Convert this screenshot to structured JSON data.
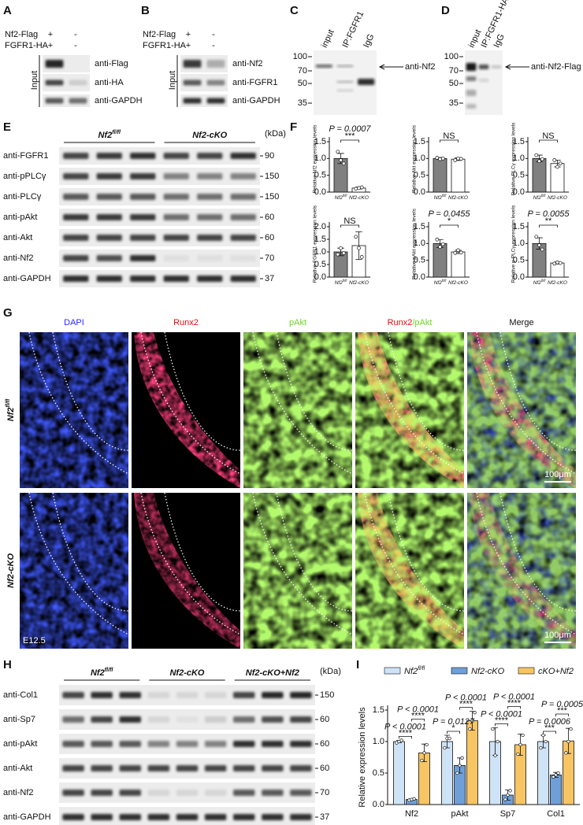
{
  "panel_labels": [
    "A",
    "B",
    "C",
    "D",
    "E",
    "F",
    "G",
    "H",
    "I"
  ],
  "panel_a": {
    "rows": [
      {
        "label": "Nf2-Flag",
        "lanes": [
          "+",
          "-"
        ]
      },
      {
        "label": "FGFR1-HA",
        "lanes": [
          "+",
          "-"
        ]
      }
    ],
    "group": "Input",
    "blots": [
      "anti-Flag",
      "anti-HA",
      "anti-GAPDH"
    ]
  },
  "panel_b": {
    "rows": [
      {
        "label": "Nf2-Flag",
        "lanes": [
          "+",
          "-"
        ]
      },
      {
        "label": "FGFR1-HA",
        "lanes": [
          "+",
          "-"
        ]
      }
    ],
    "group": "Input",
    "blots": [
      "anti-Nf2",
      "anti-FGFR1",
      "anti-GAPDH"
    ]
  },
  "panel_c": {
    "markers": [
      100,
      70,
      50,
      35
    ],
    "lanes": [
      "input",
      "IP:FGFR1",
      "IgG"
    ],
    "arrow_label": "anti-Nf2"
  },
  "panel_d": {
    "markers": [
      100,
      70,
      50,
      35
    ],
    "lanes": [
      "input",
      "IP:FGFR1-HA",
      "IgG"
    ],
    "arrow_label": "anti-Nf2-Flag"
  },
  "panel_e": {
    "groups": [
      {
        "base": "Nf2",
        "sup": "fl/fl"
      },
      {
        "base": "Nf2-cKO"
      }
    ],
    "unit": "(kDa)",
    "blots": [
      {
        "label": "anti-FGFR1",
        "kda": 90
      },
      {
        "label": "anti-pPLCγ",
        "kda": 150
      },
      {
        "label": "anti-PLCγ",
        "kda": 150
      },
      {
        "label": "anti-pAkt",
        "kda": 60
      },
      {
        "label": "anti-Akt",
        "kda": 60
      },
      {
        "label": "anti-Nf2",
        "kda": 70
      },
      {
        "label": "anti-GAPDH",
        "kda": 37
      }
    ]
  },
  "panel_g": {
    "columns": [
      [
        {
          "text": "DAPI",
          "color": "#2b2bff"
        }
      ],
      [
        {
          "text": "Runx2",
          "color": "#e01010"
        }
      ],
      [
        {
          "text": "pAkt",
          "color": "#6fd62a"
        }
      ],
      [
        {
          "text": "Runx2",
          "color": "#e01010"
        },
        {
          "text": "/pAkt",
          "color": "#6fd62a"
        }
      ],
      [
        {
          "text": "Merge",
          "color": "#111111"
        }
      ]
    ],
    "rows": [
      {
        "base": "Nf2",
        "sup": "fl/fl"
      },
      {
        "base": "Nf2-cKO"
      }
    ],
    "scale_bar": "100μm",
    "stage": "E12.5"
  },
  "panel_h": {
    "groups": [
      {
        "base": "Nf2",
        "sup": "fl/fl"
      },
      {
        "base": "Nf2-cKO"
      },
      {
        "base": "Nf2-cKO+Nf2"
      }
    ],
    "unit": "(kDa)",
    "blots": [
      {
        "label": "anti-Col1",
        "kda": 150
      },
      {
        "label": "anti-Sp7",
        "kda": 60
      },
      {
        "label": "anti-pAkt",
        "kda": 60
      },
      {
        "label": "anti-Akt",
        "kda": 60
      },
      {
        "label": "anti-Nf2",
        "kda": 70
      },
      {
        "label": "anti-GAPDH",
        "kda": 37
      }
    ]
  },
  "chart_data": [
    {
      "type": "bar",
      "ylabel": "Relative Nf2 expression levels",
      "categories": [
        {
          "base": "Nf2",
          "sup": "fl/fl"
        },
        {
          "base": "Nf2-cKO"
        }
      ],
      "colors": [
        "#808080",
        "#ffffff"
      ],
      "values": [
        1.0,
        0.12
      ],
      "errors": [
        0.15,
        0.03
      ],
      "points": [
        [
          1.2,
          0.95,
          0.85
        ],
        [
          0.1,
          0.12,
          0.14
        ]
      ],
      "ylim": [
        0,
        1.5
      ],
      "yticks": [
        {
          "value": 0,
          "label": "0.0"
        },
        {
          "value": 0.5,
          "label": "0.5"
        },
        {
          "value": 1,
          "label": "1.0"
        },
        {
          "value": 1.5,
          "label": "1.5"
        }
      ],
      "annotation": "P = 0.0007",
      "stars": "***"
    },
    {
      "type": "bar",
      "ylabel": "Relative Akt expression levels",
      "categories": [
        {
          "base": "Nf2",
          "sup": "fl/fl"
        },
        {
          "base": "Nf2-cKO"
        }
      ],
      "colors": [
        "#808080",
        "#ffffff"
      ],
      "values": [
        1.0,
        0.98
      ],
      "errors": [
        0.03,
        0.04
      ],
      "points": [
        [
          1.02,
          0.98,
          1.0
        ],
        [
          0.95,
          1.0,
          0.99
        ]
      ],
      "ylim": [
        0,
        1.5
      ],
      "yticks": [
        {
          "value": 0,
          "label": "0.0"
        },
        {
          "value": 0.5,
          "label": "0.5"
        },
        {
          "value": 1,
          "label": "1.0"
        },
        {
          "value": 1.5,
          "label": "1.5"
        }
      ],
      "stars": "NS"
    },
    {
      "type": "bar",
      "ylabel": "Relative PLCγ expression levels",
      "categories": [
        {
          "base": "Nf2",
          "sup": "fl/fl"
        },
        {
          "base": "Nf2-cKO"
        }
      ],
      "colors": [
        "#808080",
        "#ffffff"
      ],
      "values": [
        1.0,
        0.85
      ],
      "errors": [
        0.1,
        0.1
      ],
      "points": [
        [
          1.1,
          0.92,
          0.98
        ],
        [
          0.95,
          0.75,
          0.85
        ]
      ],
      "ylim": [
        0,
        1.5
      ],
      "yticks": [
        {
          "value": 0,
          "label": "0.0"
        },
        {
          "value": 0.5,
          "label": "0.5"
        },
        {
          "value": 1,
          "label": "1.0"
        },
        {
          "value": 1.5,
          "label": "1.5"
        }
      ],
      "stars": "NS"
    },
    {
      "type": "bar",
      "ylabel": "Relative FGFR1 expression levels",
      "categories": [
        {
          "base": "Nf2",
          "sup": "fl/fl"
        },
        {
          "base": "Nf2-cKO"
        }
      ],
      "colors": [
        "#808080",
        "#ffffff"
      ],
      "values": [
        1.0,
        1.25
      ],
      "errors": [
        0.15,
        0.55
      ],
      "points": [
        [
          0.9,
          1.15,
          0.95
        ],
        [
          1.6,
          1.15,
          0.8
        ]
      ],
      "ylim": [
        0,
        2
      ],
      "yticks": [
        {
          "value": 0,
          "label": "0.0"
        },
        {
          "value": 0.5,
          "label": "0.5"
        },
        {
          "value": 1,
          "label": "1.0"
        },
        {
          "value": 1.5,
          "label": "1.5"
        },
        {
          "value": 2,
          "label": "2.0"
        }
      ],
      "stars": "NS"
    },
    {
      "type": "bar",
      "ylabel": "Relative pAkt expression levels",
      "categories": [
        {
          "base": "Nf2",
          "sup": "fl/fl"
        },
        {
          "base": "Nf2-cKO"
        }
      ],
      "colors": [
        "#808080",
        "#ffffff"
      ],
      "values": [
        1.0,
        0.75
      ],
      "errors": [
        0.12,
        0.05
      ],
      "points": [
        [
          1.12,
          0.9,
          0.98
        ],
        [
          0.72,
          0.8,
          0.73
        ]
      ],
      "ylim": [
        0,
        1.5
      ],
      "yticks": [
        {
          "value": 0,
          "label": "0.0"
        },
        {
          "value": 0.5,
          "label": "0.5"
        },
        {
          "value": 1,
          "label": "1.0"
        },
        {
          "value": 1.5,
          "label": "1.5"
        }
      ],
      "annotation": "P = 0.0455",
      "stars": "*"
    },
    {
      "type": "bar",
      "ylabel": "Relative p-PLCγ expression levels",
      "categories": [
        {
          "base": "Nf2",
          "sup": "fl/fl"
        },
        {
          "base": "Nf2-cKO"
        }
      ],
      "colors": [
        "#808080",
        "#ffffff"
      ],
      "values": [
        1.0,
        0.42
      ],
      "errors": [
        0.17,
        0.03
      ],
      "points": [
        [
          1.2,
          0.95,
          0.82
        ],
        [
          0.4,
          0.44,
          0.42
        ]
      ],
      "ylim": [
        0,
        1.5
      ],
      "yticks": [
        {
          "value": 0,
          "label": "0.0"
        },
        {
          "value": 0.5,
          "label": "0.5"
        },
        {
          "value": 1,
          "label": "1.0"
        },
        {
          "value": 1.5,
          "label": "1.5"
        }
      ],
      "annotation": "P = 0.0055",
      "stars": "**"
    },
    {
      "type": "grouped_bar",
      "ylabel": "Relative expression levels",
      "categories": [
        "Nf2",
        "pAkt",
        "Sp7",
        "Col1"
      ],
      "series": [
        {
          "name": {
            "base": "Nf2",
            "sup": "fl/fl"
          },
          "color": "#cfe3f7",
          "values": [
            1.0,
            1.0,
            1.0,
            1.0
          ],
          "errors": [
            0.02,
            0.1,
            0.22,
            0.1
          ],
          "points": [
            [
              0.98,
              1.0,
              1.02
            ],
            [
              0.9,
              1.05,
              1.05
            ],
            [
              1.2,
              0.78,
              1.0
            ],
            [
              0.9,
              1.1,
              1.0
            ]
          ]
        },
        {
          "name": {
            "base": "Nf2-cKO"
          },
          "color": "#6f9fd8",
          "values": [
            0.08,
            0.62,
            0.15,
            0.47
          ],
          "errors": [
            0.01,
            0.12,
            0.08,
            0.04
          ],
          "points": [
            [
              0.07,
              0.08,
              0.09
            ],
            [
              0.5,
              0.62,
              0.74
            ],
            [
              0.08,
              0.15,
              0.22
            ],
            [
              0.44,
              0.47,
              0.5
            ]
          ]
        },
        {
          "name": {
            "base": "cKO+Nf2"
          },
          "color": "#f7c564",
          "values": [
            0.82,
            1.33,
            0.95,
            1.01
          ],
          "errors": [
            0.14,
            0.15,
            0.17,
            0.2
          ],
          "points": [
            [
              0.7,
              0.82,
              0.95
            ],
            [
              1.2,
              1.33,
              1.46
            ],
            [
              0.8,
              0.95,
              1.1
            ],
            [
              0.82,
              1.0,
              1.2
            ]
          ]
        }
      ],
      "ylim": [
        0,
        1.5
      ],
      "yticks": [
        {
          "value": 0,
          "label": "0.0"
        },
        {
          "value": 0.5,
          "label": "0.5"
        },
        {
          "value": 1,
          "label": "1.0"
        },
        {
          "value": 1.5,
          "label": "1.5"
        }
      ],
      "comparisons": [
        [
          {
            "p": "P < 0.0001",
            "stars": "****"
          },
          {
            "p": "P < 0.0001",
            "stars": "****"
          }
        ],
        [
          {
            "p": "P = 0.0127",
            "stars": "*"
          },
          {
            "p": "P < 0.0001",
            "stars": "****"
          }
        ],
        [
          {
            "p": "P < 0.0001",
            "stars": "****"
          },
          {
            "p": "P < 0.0001",
            "stars": "****"
          }
        ],
        [
          {
            "p": "P = 0.0006",
            "stars": "***"
          },
          {
            "p": "P = 0.0005",
            "stars": "***"
          }
        ]
      ]
    }
  ]
}
